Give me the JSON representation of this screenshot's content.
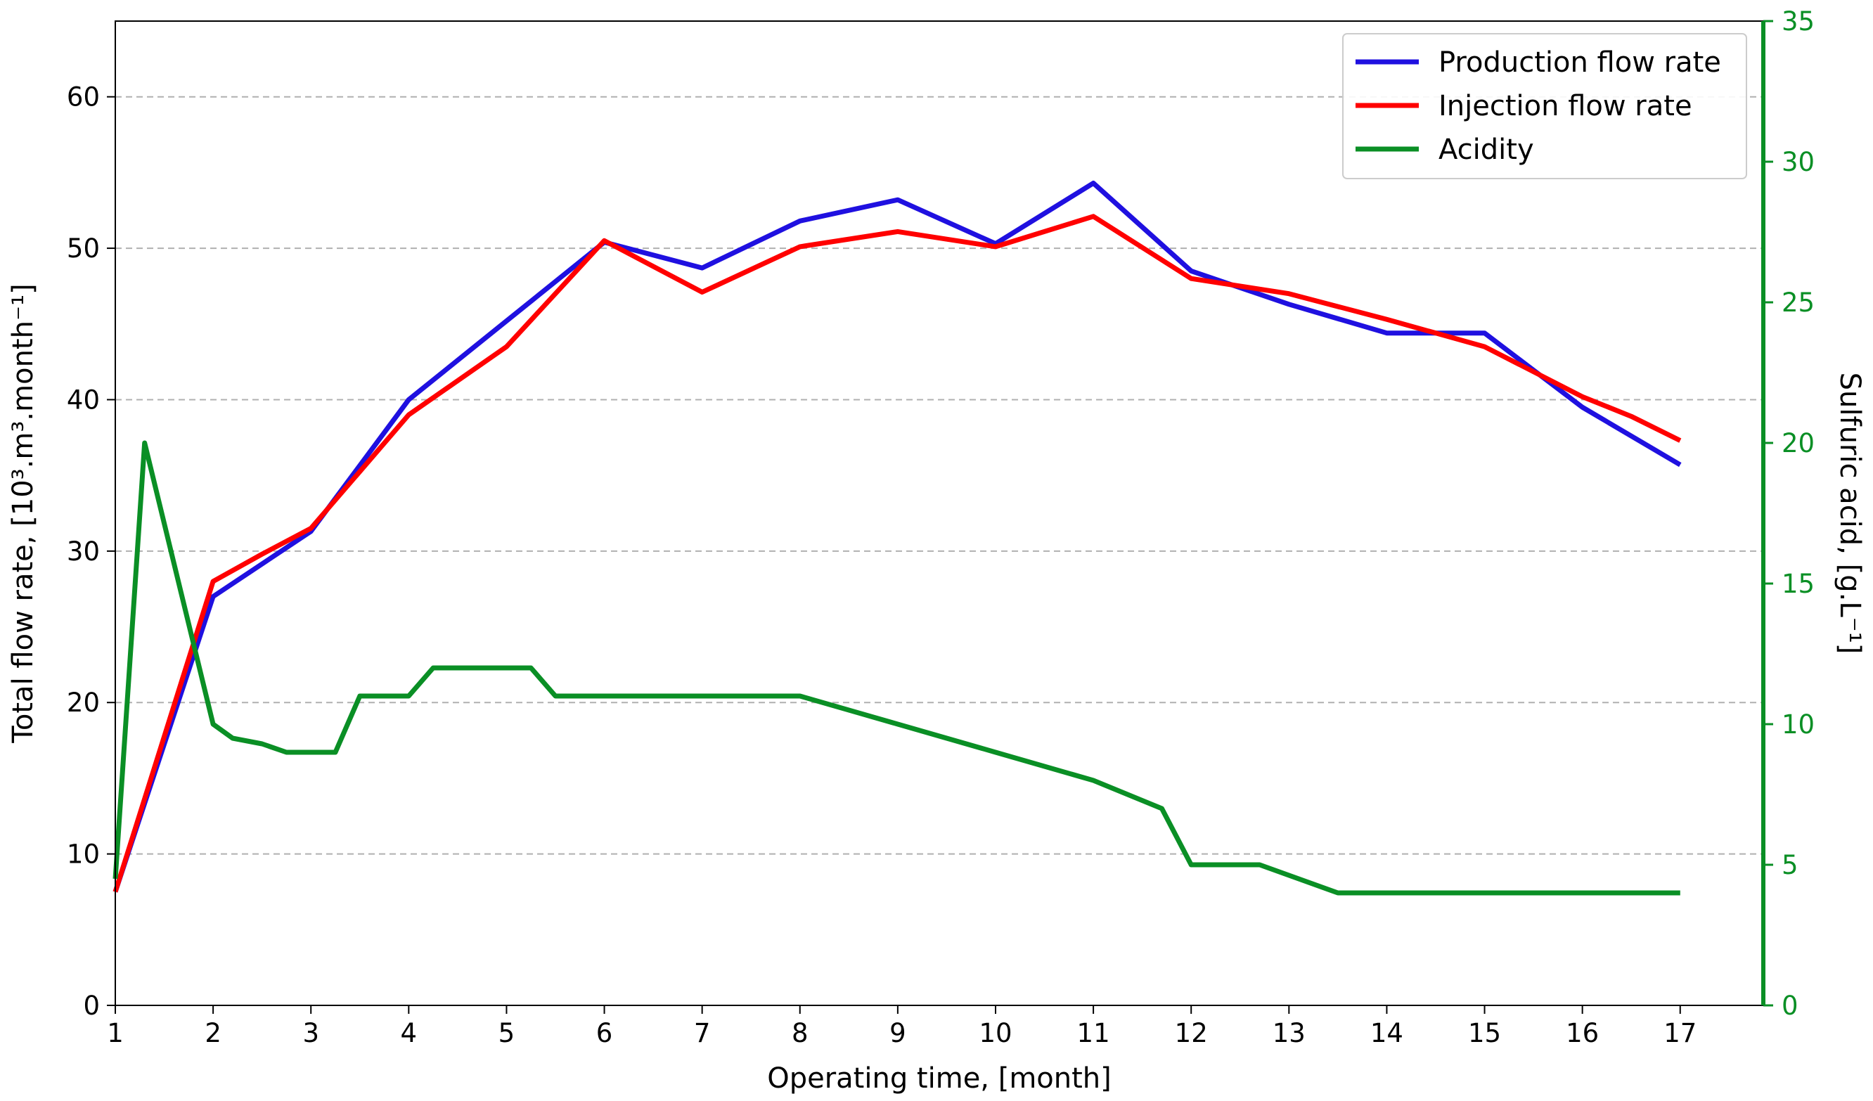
{
  "colors": {
    "production": "#1f10e0",
    "injection": "#ff0000",
    "acidity": "#0a8f25",
    "right_axis": "#0a8f25",
    "grid": "#b0b0b0"
  },
  "chart_data": {
    "type": "line",
    "xlabel": "Operating time, [month]",
    "ylabel_left": "Total flow rate, [10³.m³.month⁻¹]",
    "ylabel_right": "Sulfuric acid, [g.L⁻¹]",
    "xlim": [
      1,
      17.85
    ],
    "ylim_left": [
      0,
      65
    ],
    "ylim_right": [
      0,
      35
    ],
    "x_ticks": [
      1,
      2,
      3,
      4,
      5,
      6,
      7,
      8,
      9,
      10,
      11,
      12,
      13,
      14,
      15,
      16,
      17
    ],
    "y_ticks_left": [
      0,
      10,
      20,
      30,
      40,
      50,
      60
    ],
    "y_ticks_right": [
      0,
      5,
      10,
      15,
      20,
      25,
      30,
      35
    ],
    "grid": "horizontal dashed",
    "legend_position": "top-right",
    "series": [
      {
        "name": "Production flow rate",
        "axis": "left",
        "x": [
          1,
          2,
          3,
          4,
          5,
          6,
          7,
          8,
          9,
          10,
          11,
          12,
          13,
          14,
          15,
          16,
          17
        ],
        "y": [
          7.5,
          27,
          31.3,
          40,
          45.2,
          50.4,
          48.7,
          51.8,
          53.2,
          50.3,
          54.3,
          48.5,
          46.3,
          44.4,
          44.4,
          39.5,
          35.7
        ]
      },
      {
        "name": "Injection flow rate",
        "axis": "left",
        "x": [
          1,
          2,
          2.5,
          3,
          4,
          5,
          6,
          7,
          8,
          9,
          10,
          11,
          12,
          13,
          14,
          15,
          16,
          16.5,
          17
        ],
        "y": [
          7.5,
          28,
          29.8,
          31.5,
          39,
          43.5,
          50.5,
          47.1,
          50.1,
          51.1,
          50.1,
          52.1,
          48,
          47,
          45.3,
          43.5,
          40.2,
          38.9,
          37.3
        ]
      },
      {
        "name": "Acidity",
        "axis": "right",
        "x": [
          1,
          1.3,
          2,
          2.2,
          2.5,
          2.75,
          3.25,
          3.5,
          4,
          4.25,
          5,
          5.25,
          5.5,
          6,
          7,
          8,
          9,
          10,
          11,
          11.7,
          12,
          12.7,
          13.5,
          14,
          15,
          16,
          17
        ],
        "y": [
          4.5,
          20,
          10,
          9.5,
          9.3,
          9,
          9,
          11,
          11,
          12,
          12,
          12,
          11,
          11,
          11,
          11,
          10,
          9,
          8,
          7,
          5,
          5,
          4,
          4,
          4,
          4,
          4
        ]
      }
    ]
  }
}
